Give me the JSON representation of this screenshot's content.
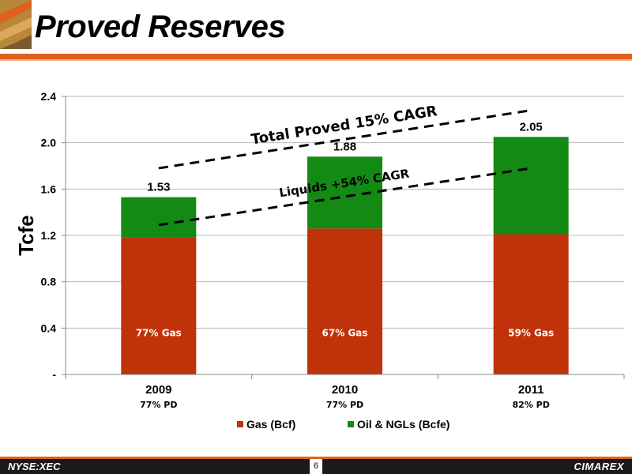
{
  "header": {
    "title": "Proved Reserves"
  },
  "footer": {
    "ticker": "NYSE:XEC",
    "page": "6",
    "brand": "CIMAREX"
  },
  "colors": {
    "accent": "#e0601e",
    "gas": "#c0320a",
    "oil": "#138a13"
  },
  "chart_data": {
    "type": "bar",
    "stacked": true,
    "categories": [
      "2009",
      "2010",
      "2011"
    ],
    "sublabels": [
      "77% PD",
      "77% PD",
      "82% PD"
    ],
    "series": [
      {
        "name": "Gas (Bcf)",
        "color": "#c0320a",
        "values": [
          1.18,
          1.26,
          1.21
        ]
      },
      {
        "name": "Oil & NGLs (Bcfe)",
        "color": "#138a13",
        "values": [
          0.35,
          0.62,
          0.84
        ]
      }
    ],
    "totals": [
      "1.53",
      "1.88",
      "2.05"
    ],
    "bar_labels": [
      "77% Gas",
      "67% Gas",
      "59% Gas"
    ],
    "ylabel": "Tcfe",
    "ylim": [
      0,
      2.4
    ],
    "yticks": [
      0,
      0.4,
      0.8,
      1.2,
      1.6,
      2.0,
      2.4
    ],
    "ytick_labels": [
      "-",
      "0.4",
      "0.8",
      "1.2",
      "1.6",
      "2.0",
      "2.4"
    ],
    "grid": true,
    "legend_position": "bottom",
    "annotations": [
      {
        "text": "Total Proved 15% CAGR",
        "from": [
          "2009",
          1.78
        ],
        "to": [
          "2011",
          2.28
        ]
      },
      {
        "text": "Liquids +54% CAGR",
        "from": [
          "2009",
          1.29
        ],
        "to": [
          "2011",
          1.78
        ]
      }
    ]
  }
}
